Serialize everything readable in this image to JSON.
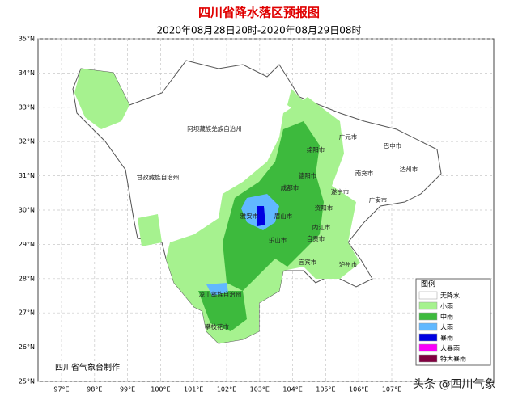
{
  "header": {
    "title": "四川省降水落区预报图",
    "subtitle": "2020年08月28日20时-2020年08月29日08时"
  },
  "axes": {
    "lat_labels": [
      "35°N",
      "34°N",
      "33°N",
      "32°N",
      "31°N",
      "30°N",
      "29°N",
      "28°N",
      "27°N",
      "26°N",
      "25°N"
    ],
    "lon_labels": [
      "97°E",
      "98°E",
      "99°E",
      "100°E",
      "101°E",
      "102°E",
      "103°E",
      "104°E",
      "105°E",
      "106°E",
      "107°E"
    ]
  },
  "regions": [
    {
      "label": "阿坝藏族羌族自治州"
    },
    {
      "label": "甘孜藏族自治州"
    },
    {
      "label": "凉山彝族自治州"
    },
    {
      "label": "广元市"
    },
    {
      "label": "巴中市"
    },
    {
      "label": "绵阳市"
    },
    {
      "label": "达州市"
    },
    {
      "label": "德阳市"
    },
    {
      "label": "南充市"
    },
    {
      "label": "成都市"
    },
    {
      "label": "遂宁市"
    },
    {
      "label": "广安市"
    },
    {
      "label": "雅安市"
    },
    {
      "label": "眉山市"
    },
    {
      "label": "资阳市"
    },
    {
      "label": "内江市"
    },
    {
      "label": "乐山市"
    },
    {
      "label": "自贡市"
    },
    {
      "label": "宜宾市"
    },
    {
      "label": "泸州市"
    },
    {
      "label": "攀枝花市"
    }
  ],
  "legend": {
    "title": "图例",
    "items": [
      {
        "label": "无降水",
        "color": "#ffffff"
      },
      {
        "label": "小雨",
        "color": "#a6f28f"
      },
      {
        "label": "中雨",
        "color": "#3dba3d"
      },
      {
        "label": "大雨",
        "color": "#61b8ff"
      },
      {
        "label": "暴雨",
        "color": "#0000e1"
      },
      {
        "label": "大暴雨",
        "color": "#fa00fa"
      },
      {
        "label": "特大暴雨",
        "color": "#800040"
      }
    ]
  },
  "footer": "四川省气象台制作",
  "watermark": "头条 @四川气象"
}
